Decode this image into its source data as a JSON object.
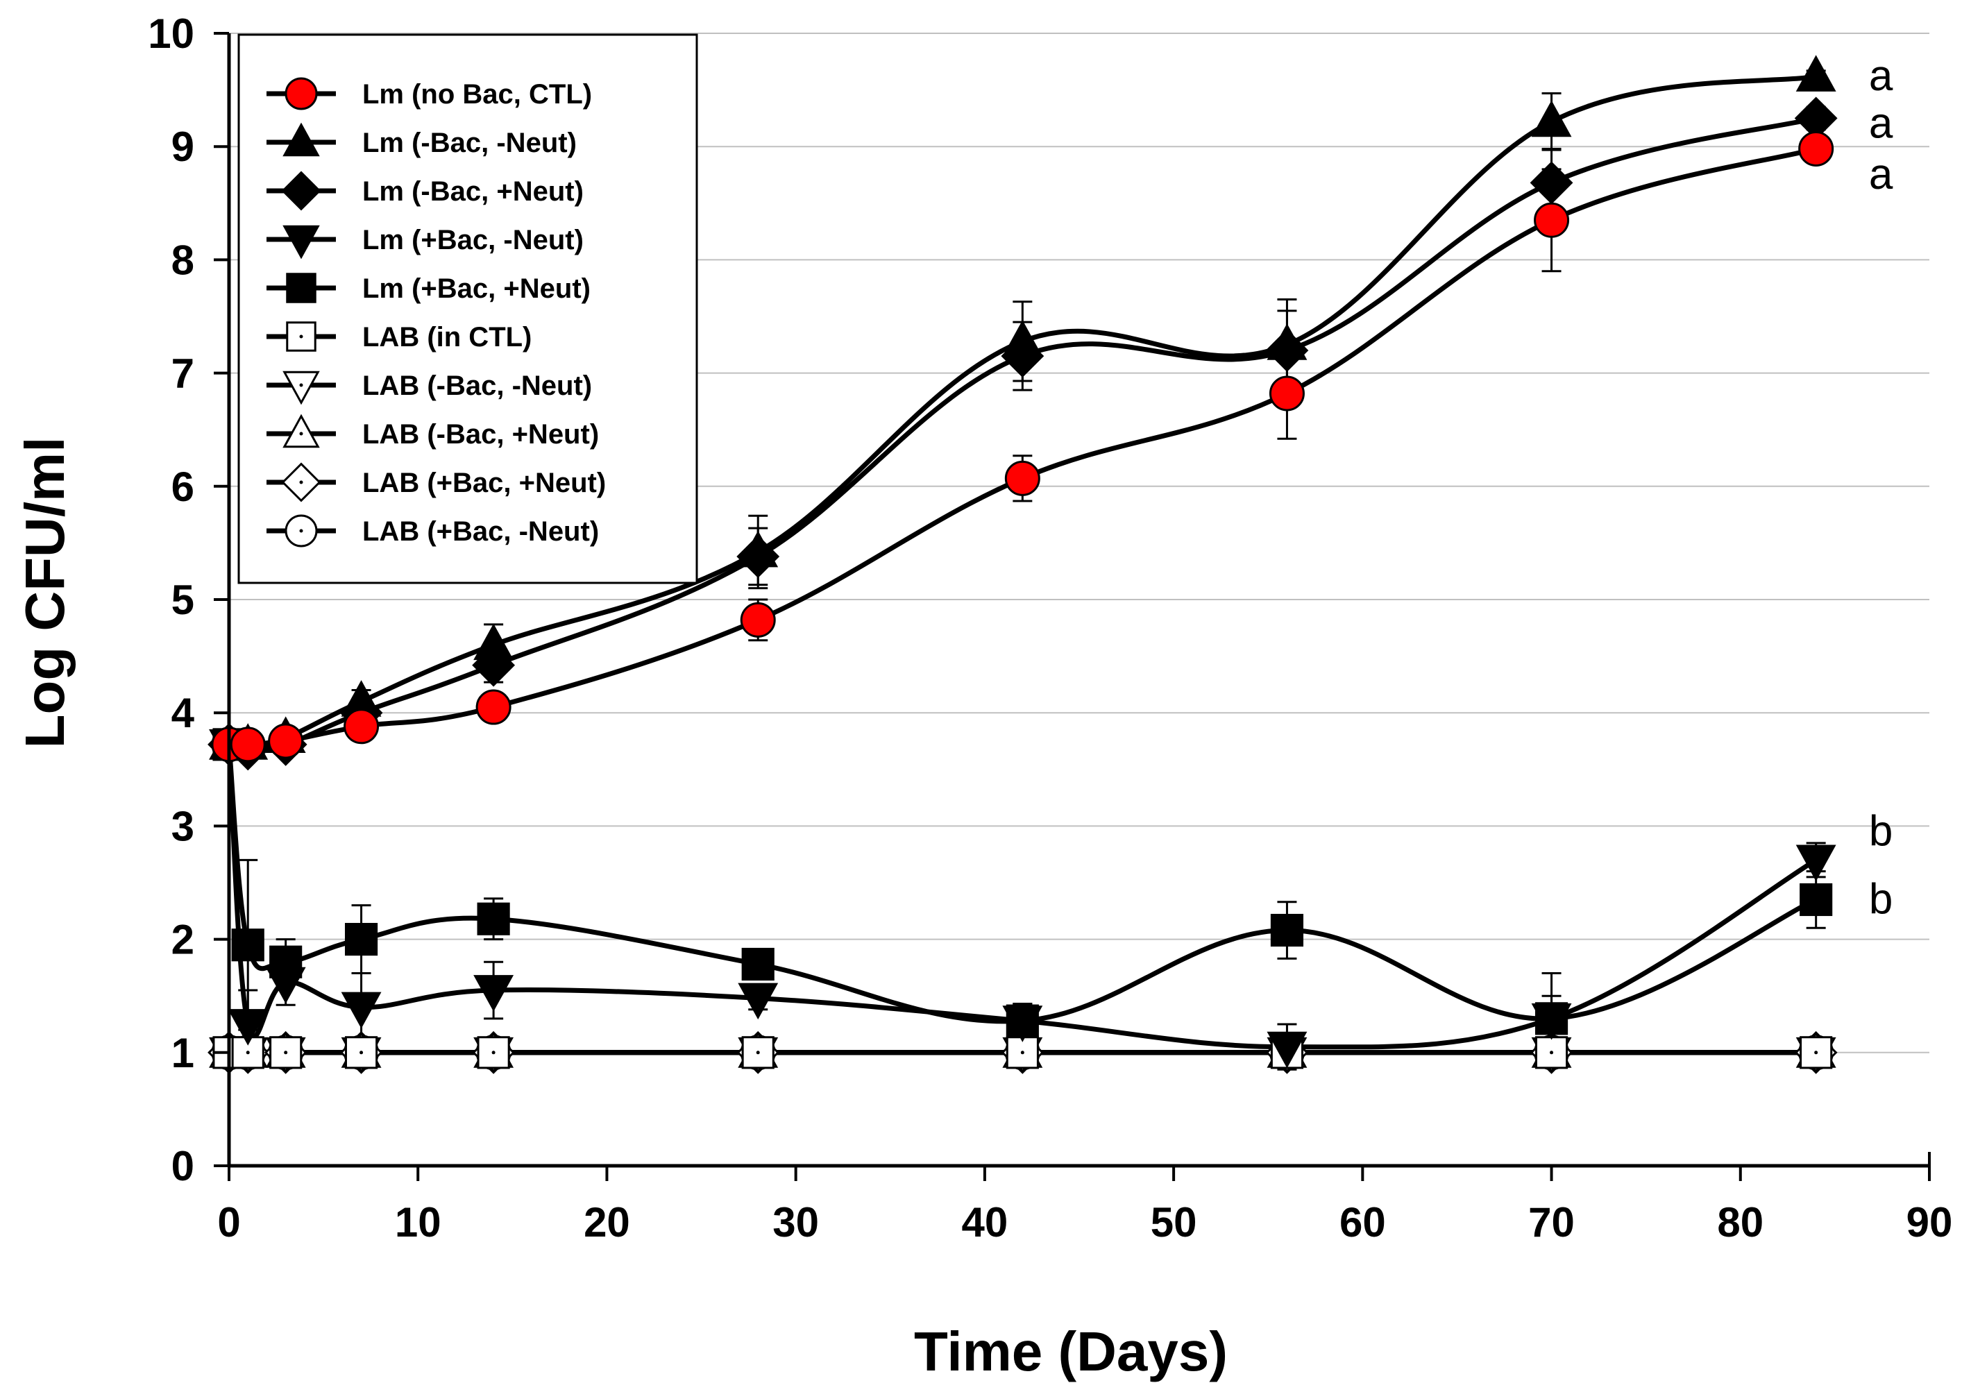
{
  "chart_data": {
    "type": "line",
    "title": "",
    "xlabel": "Time (Days)",
    "ylabel": "Log CFU/ml",
    "xlim": [
      0,
      90
    ],
    "ylim": [
      0,
      10
    ],
    "xticks": [
      0,
      10,
      20,
      30,
      40,
      50,
      60,
      70,
      80,
      90
    ],
    "yticks": [
      0,
      1,
      2,
      3,
      4,
      5,
      6,
      7,
      8,
      9,
      10
    ],
    "grid": "horizontal",
    "legend_position": "top-left",
    "series": [
      {
        "name": "Lm (no Bac, CTL)",
        "marker": "circle",
        "fill": "#ff0000",
        "x": [
          0,
          1,
          3,
          7,
          14,
          28,
          42,
          56,
          70,
          84
        ],
        "y": [
          3.72,
          3.72,
          3.75,
          3.88,
          4.05,
          4.82,
          6.07,
          6.82,
          8.35,
          8.98
        ],
        "err": [
          0.05,
          0.05,
          0.05,
          0.08,
          0.12,
          0.18,
          0.2,
          0.4,
          0.45,
          0.1
        ]
      },
      {
        "name": "Lm (-Bac, -Neut)",
        "marker": "triangle-up",
        "fill": "#000000",
        "x": [
          0,
          1,
          3,
          7,
          14,
          28,
          42,
          56,
          70,
          84
        ],
        "y": [
          3.72,
          3.72,
          3.78,
          4.1,
          4.6,
          5.42,
          7.28,
          7.25,
          9.22,
          9.62
        ],
        "err": [
          0.05,
          0.05,
          0.05,
          0.1,
          0.18,
          0.32,
          0.35,
          0.4,
          0.25,
          0.05
        ]
      },
      {
        "name": "Lm (-Bac, +Neut)",
        "marker": "diamond",
        "fill": "#000000",
        "x": [
          0,
          1,
          3,
          7,
          14,
          28,
          42,
          56,
          70,
          84
        ],
        "y": [
          3.72,
          3.68,
          3.72,
          4.0,
          4.42,
          5.38,
          7.15,
          7.2,
          8.68,
          9.25
        ],
        "err": [
          0.05,
          0.05,
          0.05,
          0.1,
          0.15,
          0.25,
          0.3,
          0.35,
          0.3,
          0.1
        ]
      },
      {
        "name": "Lm (+Bac, -Neut)",
        "marker": "triangle-down",
        "fill": "#000000",
        "x": [
          0,
          1,
          3,
          7,
          14,
          28,
          42,
          56,
          70,
          84
        ],
        "y": [
          3.72,
          1.25,
          1.62,
          1.4,
          1.55,
          1.48,
          1.28,
          1.05,
          1.3,
          2.7
        ],
        "err": [
          0.05,
          0.3,
          0.2,
          0.3,
          0.25,
          0.1,
          0.15,
          0.2,
          0.4,
          0.15
        ]
      },
      {
        "name": "Lm (+Bac, +Neut)",
        "marker": "square",
        "fill": "#000000",
        "x": [
          0,
          1,
          3,
          7,
          14,
          28,
          42,
          56,
          70,
          84
        ],
        "y": [
          3.72,
          1.95,
          1.8,
          2.0,
          2.18,
          1.78,
          1.28,
          2.08,
          1.3,
          2.35
        ],
        "err": [
          0.05,
          0.75,
          0.2,
          0.3,
          0.18,
          0.12,
          0.15,
          0.25,
          0.2,
          0.25
        ]
      },
      {
        "name": "LAB (in CTL)",
        "marker": "square",
        "fill": "#ffffff",
        "x": [
          0,
          1,
          3,
          7,
          14,
          28,
          42,
          56,
          70,
          84
        ],
        "y": [
          1,
          1,
          1,
          1,
          1,
          1,
          1,
          1,
          1,
          1
        ],
        "err": [
          0,
          0,
          0,
          0,
          0,
          0,
          0,
          0,
          0,
          0
        ]
      },
      {
        "name": "LAB (-Bac, -Neut)",
        "marker": "triangle-down",
        "fill": "#ffffff",
        "x": [
          0,
          1,
          3,
          7,
          14,
          28,
          42,
          56,
          70,
          84
        ],
        "y": [
          1,
          1,
          1,
          1,
          1,
          1,
          1,
          1,
          1,
          1
        ],
        "err": [
          0,
          0,
          0,
          0,
          0,
          0,
          0,
          0,
          0,
          0
        ]
      },
      {
        "name": "LAB (-Bac, +Neut)",
        "marker": "triangle-up",
        "fill": "#ffffff",
        "x": [
          0,
          1,
          3,
          7,
          14,
          28,
          42,
          56,
          70,
          84
        ],
        "y": [
          1,
          1,
          1,
          1,
          1,
          1,
          1,
          1,
          1,
          1
        ],
        "err": [
          0,
          0,
          0,
          0,
          0,
          0,
          0,
          0,
          0,
          0
        ]
      },
      {
        "name": "LAB (+Bac, +Neut)",
        "marker": "diamond",
        "fill": "#ffffff",
        "x": [
          0,
          1,
          3,
          7,
          14,
          28,
          42,
          56,
          70,
          84
        ],
        "y": [
          1,
          1,
          1,
          1,
          1,
          1,
          1,
          1,
          1,
          1
        ],
        "err": [
          0,
          0,
          0,
          0,
          0,
          0,
          0,
          0,
          0,
          0
        ]
      },
      {
        "name": "LAB (+Bac, -Neut)",
        "marker": "circle",
        "fill": "#ffffff",
        "x": [
          0,
          1,
          3,
          7,
          14,
          28,
          42,
          56,
          70,
          84
        ],
        "y": [
          1,
          1,
          1,
          1,
          1,
          1,
          1,
          1,
          1,
          1
        ],
        "err": [
          0,
          0,
          0,
          0,
          0,
          0,
          0,
          0,
          0,
          0
        ]
      }
    ],
    "annotations": [
      {
        "text": "a",
        "x": 86.8,
        "y": 9.62
      },
      {
        "text": "a",
        "x": 86.8,
        "y": 9.2
      },
      {
        "text": "a",
        "x": 86.8,
        "y": 8.75
      },
      {
        "text": "b",
        "x": 86.8,
        "y": 2.95
      },
      {
        "text": "b",
        "x": 86.8,
        "y": 2.35
      }
    ]
  }
}
